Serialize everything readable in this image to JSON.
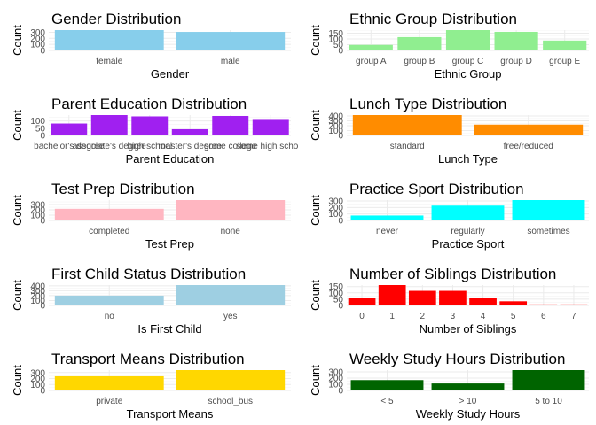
{
  "chart_data": [
    {
      "type": "bar",
      "title": "Gender Distribution",
      "xlabel": "Gender",
      "ylabel": "Count",
      "categories": [
        "female",
        "male"
      ],
      "values": [
        336,
        306
      ],
      "yticks": [
        0,
        100,
        200,
        300
      ],
      "ylim": [
        0,
        336
      ],
      "color": "#87CEEB",
      "grid": true
    },
    {
      "type": "bar",
      "title": "Ethnic Group Distribution",
      "xlabel": "Ethnic Group",
      "ylabel": "Count",
      "categories": [
        "group A",
        "group B",
        "group C",
        "group D",
        "group E"
      ],
      "values": [
        48,
        116,
        177,
        162,
        86
      ],
      "yticks": [
        0,
        50,
        100,
        150
      ],
      "ylim": [
        0,
        177
      ],
      "color": "#90EE90",
      "grid": true
    },
    {
      "type": "bar",
      "title": "Parent Education Distribution",
      "xlabel": "Parent Education",
      "ylabel": "Count",
      "categories": [
        "bachelor's degree",
        "associate's degree",
        "high school",
        "master's degree",
        "some college",
        "some high school"
      ],
      "values": [
        82,
        140,
        131,
        43,
        134,
        113
      ],
      "yticks": [
        0,
        50,
        100
      ],
      "ylim": [
        0,
        140
      ],
      "color": "#A020F0",
      "grid": true
    },
    {
      "type": "bar",
      "title": "Lunch Type Distribution",
      "xlabel": "Lunch Type",
      "ylabel": "Count",
      "categories": [
        "standard",
        "free/reduced"
      ],
      "values": [
        419,
        223
      ],
      "yticks": [
        0,
        100,
        200,
        300,
        400
      ],
      "ylim": [
        0,
        419
      ],
      "color": "#FF8C00",
      "grid": true
    },
    {
      "type": "bar",
      "title": "Test Prep Distribution",
      "xlabel": "Test Prep",
      "ylabel": "Count",
      "categories": [
        "completed",
        "none"
      ],
      "values": [
        220,
        384
      ],
      "yticks": [
        0,
        100,
        200,
        300
      ],
      "ylim": [
        0,
        384
      ],
      "color": "#FFB6C1",
      "grid": true
    },
    {
      "type": "bar",
      "title": "Practice Sport Distribution",
      "xlabel": "Practice Sport",
      "ylabel": "Count",
      "categories": [
        "never",
        "regularly",
        "sometimes"
      ],
      "values": [
        76,
        229,
        314
      ],
      "yticks": [
        0,
        100,
        200,
        300
      ],
      "ylim": [
        0,
        314
      ],
      "color": "#00FFFF",
      "grid": true
    },
    {
      "type": "bar",
      "title": "First Child Status Distribution",
      "xlabel": "Is First Child",
      "ylabel": "Count",
      "categories": [
        "no",
        "yes"
      ],
      "values": [
        200,
        415
      ],
      "yticks": [
        0,
        100,
        200,
        300,
        400
      ],
      "ylim": [
        0,
        415
      ],
      "color": "#9ECFE2",
      "grid": true
    },
    {
      "type": "bar",
      "title": "Number of Siblings Distribution",
      "xlabel": "Number of Siblings",
      "ylabel": "Count",
      "categories": [
        "0",
        "1",
        "2",
        "3",
        "4",
        "5",
        "6",
        "7"
      ],
      "values": [
        63,
        162,
        116,
        116,
        58,
        33,
        8,
        8
      ],
      "yticks": [
        0,
        50,
        100,
        150
      ],
      "ylim": [
        0,
        162
      ],
      "color": "#FF0000",
      "grid": true
    },
    {
      "type": "bar",
      "title": "Transport Means Distribution",
      "xlabel": "Transport Means",
      "ylabel": "Count",
      "categories": [
        "private",
        "school_bus"
      ],
      "values": [
        238,
        341
      ],
      "yticks": [
        0,
        100,
        200,
        300
      ],
      "ylim": [
        0,
        341
      ],
      "color": "#FFD700",
      "grid": true
    },
    {
      "type": "bar",
      "title": "Weekly Study Hours Distribution",
      "xlabel": "Weekly Study Hours",
      "ylabel": "Count",
      "categories": [
        "< 5",
        "> 10",
        "5 to 10"
      ],
      "values": [
        168,
        113,
        329
      ],
      "yticks": [
        0,
        100,
        200,
        300
      ],
      "ylim": [
        0,
        329
      ],
      "color": "#006400",
      "grid": true
    }
  ]
}
